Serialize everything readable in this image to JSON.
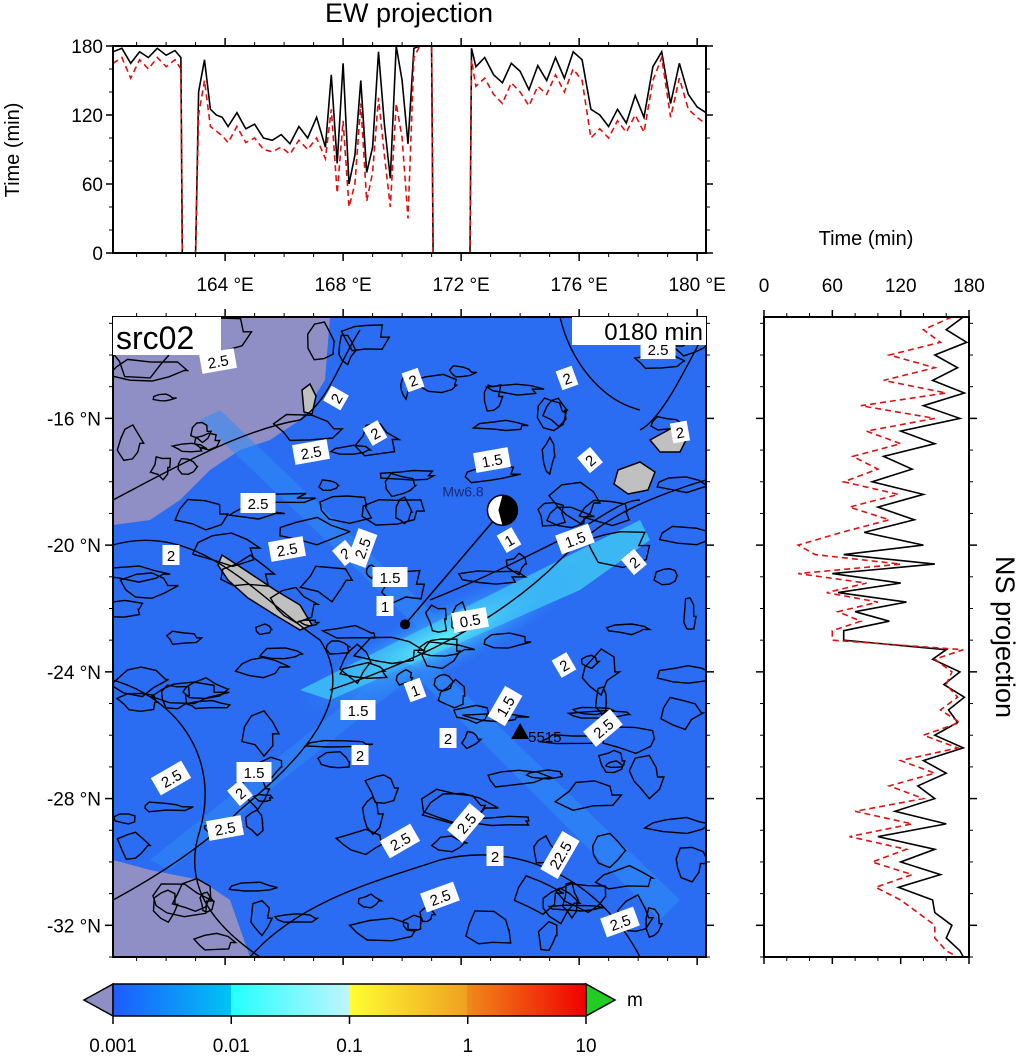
{
  "panel_label": "src02",
  "time_label": "0180 min",
  "ew_panel": {
    "title": "EW projection",
    "ylabel": "Time (min)"
  },
  "ns_panel": {
    "title": "NS projection",
    "xlabel": "Time (min)"
  },
  "source": {
    "label": "Mw6.8",
    "lon": 173.4,
    "lat": -18.9
  },
  "epicenter": {
    "lon": 170.1,
    "lat": -22.5
  },
  "station": {
    "lon": 174.0,
    "lat": -25.9,
    "label": "5515"
  },
  "colorbar": {
    "unit": "m",
    "ticks": [
      "0.001",
      "0.01",
      "0.1",
      "1",
      "10"
    ],
    "colors": {
      "low": "#8f8fc6",
      "high": "#22cc22"
    }
  },
  "chart_data": [
    {
      "type": "line",
      "name": "ew_projection",
      "title": "EW projection",
      "ylabel": "Time (min)",
      "xlim": [
        160.2,
        180.3
      ],
      "ylim": [
        0,
        180
      ],
      "xticks": [
        "164 °E",
        "168 °E",
        "172 °E",
        "176 °E",
        "180 °E"
      ],
      "xtick_values": [
        164,
        168,
        172,
        176,
        180
      ],
      "yticks": [
        0,
        60,
        120,
        180
      ],
      "series": [
        {
          "color": "#000000",
          "dash": "none",
          "x": [
            160.2,
            160.5,
            160.8,
            161.1,
            161.4,
            161.7,
            162.0,
            162.3,
            162.5,
            162.55,
            163.0,
            163.1,
            163.3,
            163.5,
            163.7,
            163.9,
            164.1,
            164.4,
            164.7,
            165.0,
            165.3,
            165.6,
            165.9,
            166.2,
            166.5,
            166.8,
            167.1,
            167.4,
            167.6,
            167.8,
            168.0,
            168.2,
            168.4,
            168.6,
            168.8,
            169.0,
            169.2,
            169.4,
            169.6,
            169.8,
            170.0,
            170.2,
            170.4,
            170.6,
            170.65,
            171.0,
            171.05,
            172.3,
            172.35,
            172.5,
            172.8,
            173.1,
            173.4,
            173.7,
            174.0,
            174.3,
            174.6,
            174.9,
            175.2,
            175.5,
            175.8,
            176.1,
            176.4,
            176.7,
            177.0,
            177.3,
            177.6,
            177.9,
            178.2,
            178.5,
            178.8,
            179.1,
            179.4,
            179.7,
            180.0,
            180.3
          ],
          "y": [
            175,
            178,
            165,
            175,
            170,
            178,
            172,
            176,
            170,
            0,
            0,
            140,
            168,
            125,
            120,
            118,
            110,
            122,
            108,
            112,
            100,
            98,
            103,
            95,
            110,
            100,
            118,
            92,
            155,
            78,
            165,
            60,
            85,
            150,
            70,
            92,
            175,
            112,
            65,
            180,
            150,
            95,
            178,
            180,
            180,
            180,
            0,
            0,
            178,
            162,
            170,
            155,
            148,
            165,
            158,
            142,
            163,
            150,
            170,
            152,
            175,
            168,
            125,
            120,
            110,
            125,
            113,
            137,
            118,
            162,
            175,
            130,
            165,
            138,
            127,
            122
          ]
        },
        {
          "color": "#dd1111",
          "dash": "6,4",
          "x": [
            160.2,
            160.5,
            160.8,
            161.1,
            161.4,
            161.7,
            162.0,
            162.3,
            162.5,
            162.55,
            163.0,
            163.1,
            163.3,
            163.5,
            163.7,
            163.9,
            164.1,
            164.4,
            164.7,
            165.0,
            165.3,
            165.6,
            165.9,
            166.2,
            166.5,
            166.8,
            167.1,
            167.4,
            167.6,
            167.8,
            168.0,
            168.2,
            168.4,
            168.6,
            168.8,
            169.0,
            169.2,
            169.4,
            169.6,
            169.8,
            170.0,
            170.2,
            170.4,
            170.6,
            170.65,
            171.0,
            171.05,
            172.3,
            172.35,
            172.5,
            172.8,
            173.1,
            173.4,
            173.7,
            174.0,
            174.3,
            174.6,
            174.9,
            175.2,
            175.5,
            175.8,
            176.1,
            176.4,
            176.7,
            177.0,
            177.3,
            177.6,
            177.9,
            178.2,
            178.5,
            178.8,
            179.1,
            179.4,
            179.7,
            180.0,
            180.3
          ],
          "y": [
            165,
            170,
            152,
            168,
            160,
            170,
            162,
            168,
            160,
            0,
            0,
            120,
            150,
            110,
            106,
            102,
            96,
            110,
            96,
            100,
            90,
            88,
            92,
            86,
            98,
            90,
            100,
            82,
            125,
            52,
            115,
            40,
            60,
            130,
            45,
            70,
            135,
            85,
            40,
            130,
            100,
            30,
            170,
            180,
            180,
            180,
            0,
            0,
            168,
            145,
            152,
            138,
            130,
            148,
            140,
            128,
            145,
            138,
            155,
            140,
            160,
            150,
            100,
            108,
            100,
            115,
            105,
            120,
            105,
            150,
            170,
            118,
            152,
            125,
            118,
            112
          ]
        }
      ]
    },
    {
      "type": "line",
      "name": "ns_projection",
      "title": "NS projection",
      "xlabel": "Time (min)",
      "xlim": [
        0,
        180
      ],
      "ylim": [
        -33.0,
        -12.8
      ],
      "xticks": [
        0,
        60,
        120,
        180
      ],
      "ytick_values": [
        -16,
        -20,
        -24,
        -28,
        -32
      ],
      "series": [
        {
          "color": "#000000",
          "dash": "none",
          "lat": [
            -12.8,
            -13.2,
            -13.6,
            -14.0,
            -14.4,
            -14.8,
            -15.2,
            -15.6,
            -16.0,
            -16.4,
            -16.8,
            -17.2,
            -17.6,
            -18.0,
            -18.4,
            -18.8,
            -19.2,
            -19.6,
            -20.0,
            -20.3,
            -20.6,
            -20.9,
            -21.2,
            -21.5,
            -21.8,
            -22.1,
            -22.4,
            -22.7,
            -23.0,
            -23.3,
            -23.6,
            -24.0,
            -24.4,
            -24.8,
            -25.2,
            -25.6,
            -26.0,
            -26.4,
            -26.8,
            -27.2,
            -27.6,
            -28.0,
            -28.4,
            -28.8,
            -29.2,
            -29.6,
            -30.0,
            -30.4,
            -30.8,
            -31.2,
            -31.6,
            -32.0,
            -32.4,
            -32.8,
            -33.0
          ],
          "t": [
            175,
            160,
            178,
            150,
            170,
            148,
            176,
            140,
            172,
            120,
            150,
            105,
            130,
            95,
            140,
            100,
            132,
            88,
            140,
            70,
            150,
            60,
            120,
            65,
            125,
            80,
            110,
            70,
            70,
            160,
            148,
            172,
            158,
            176,
            162,
            170,
            150,
            175,
            140,
            160,
            135,
            150,
            115,
            160,
            100,
            150,
            120,
            155,
            118,
            148,
            150,
            165,
            160,
            172,
            175
          ]
        },
        {
          "color": "#dd1111",
          "dash": "6,4",
          "lat": [
            -12.8,
            -13.2,
            -13.6,
            -14.0,
            -14.4,
            -14.8,
            -15.2,
            -15.6,
            -16.0,
            -16.4,
            -16.8,
            -17.2,
            -17.6,
            -18.0,
            -18.4,
            -18.8,
            -19.2,
            -19.6,
            -20.0,
            -20.3,
            -20.6,
            -20.9,
            -21.2,
            -21.5,
            -21.8,
            -22.1,
            -22.4,
            -22.7,
            -23.0,
            -23.3,
            -23.6,
            -24.0,
            -24.4,
            -24.8,
            -25.2,
            -25.6,
            -26.0,
            -26.4,
            -26.8,
            -27.2,
            -27.6,
            -28.0,
            -28.4,
            -28.8,
            -29.2,
            -29.6,
            -30.0,
            -30.4,
            -30.8,
            -31.2,
            -31.6,
            -32.0,
            -32.4,
            -32.8,
            -33.0
          ],
          "t": [
            165,
            140,
            155,
            110,
            150,
            105,
            160,
            85,
            150,
            90,
            120,
            78,
            100,
            70,
            118,
            75,
            110,
            68,
            30,
            45,
            120,
            30,
            90,
            55,
            100,
            65,
            85,
            60,
            60,
            175,
            150,
            165,
            160,
            170,
            155,
            172,
            140,
            170,
            120,
            150,
            110,
            140,
            80,
            130,
            75,
            125,
            95,
            130,
            98,
            120,
            135,
            150,
            150,
            160,
            170
          ]
        }
      ]
    }
  ]
}
